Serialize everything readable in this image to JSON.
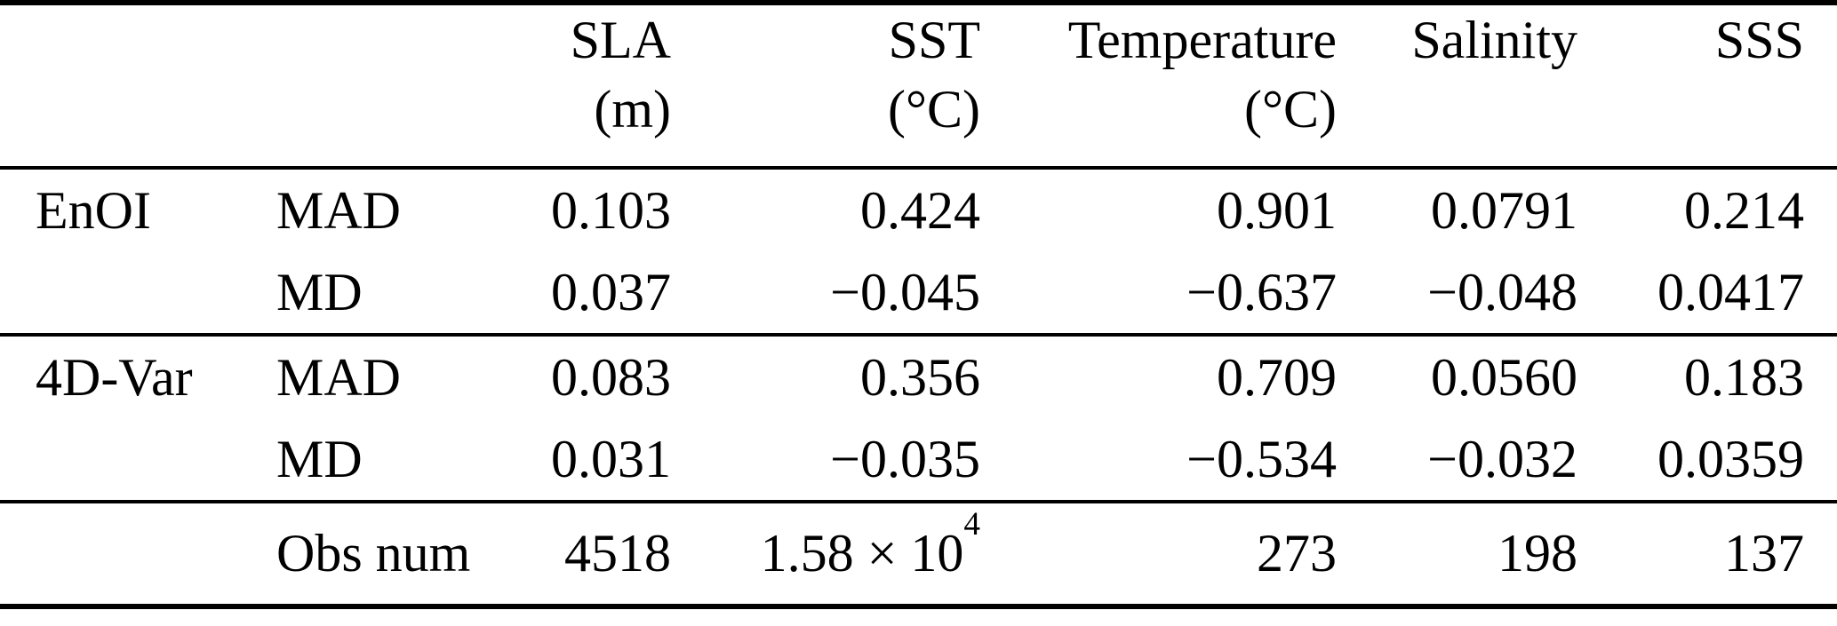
{
  "table": {
    "columns": [
      {
        "label": "",
        "unit": ""
      },
      {
        "label": "",
        "unit": ""
      },
      {
        "label": "SLA",
        "unit": "(m)"
      },
      {
        "label": "SST",
        "unit": "(°C)"
      },
      {
        "label": "Temperature",
        "unit": "(°C)"
      },
      {
        "label": "Salinity",
        "unit": ""
      },
      {
        "label": "SSS",
        "unit": ""
      }
    ],
    "groups": [
      {
        "name": "EnOI",
        "rows": [
          {
            "stat": "MAD",
            "values": [
              "0.103",
              "0.424",
              "0.901",
              "0.0791",
              "0.214"
            ]
          },
          {
            "stat": "MD",
            "values": [
              "0.037",
              "−0.045",
              "−0.637",
              "−0.048",
              "0.0417"
            ]
          }
        ]
      },
      {
        "name": "4D-Var",
        "rows": [
          {
            "stat": "MAD",
            "values": [
              "0.083",
              "0.356",
              "0.709",
              "0.0560",
              "0.183"
            ]
          },
          {
            "stat": "MD",
            "values": [
              "0.031",
              "−0.035",
              "−0.534",
              "−0.032",
              "0.0359"
            ]
          }
        ]
      }
    ],
    "footer": {
      "label": "Obs num",
      "values": [
        "4518",
        {
          "base": "1.58 × 10",
          "exp": "4"
        },
        "273",
        "198",
        "137"
      ]
    },
    "colors": {
      "text": "#000000",
      "background": "#ffffff",
      "rule": "#000000"
    }
  }
}
